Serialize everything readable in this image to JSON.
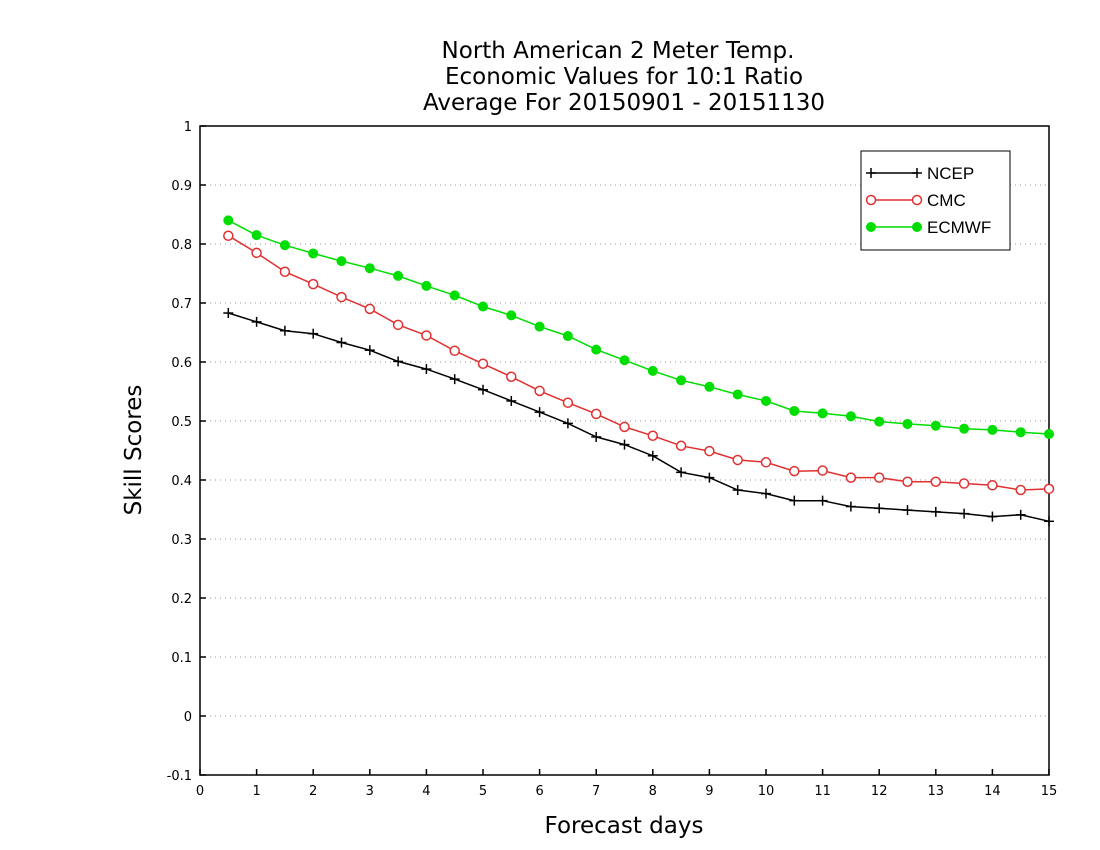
{
  "chart_data": {
    "type": "line",
    "title": [
      "North American 2 Meter Temp.",
      "Economic Values for 10:1 Ratio",
      "Average For 20150901 - 20151130"
    ],
    "xlabel": "Forecast days",
    "ylabel": "Skill Scores",
    "xlim": [
      0,
      15
    ],
    "ylim": [
      -0.1,
      1
    ],
    "xticks": [
      0,
      1,
      2,
      3,
      4,
      5,
      6,
      7,
      8,
      9,
      10,
      11,
      12,
      13,
      14,
      15
    ],
    "yticks": [
      -0.1,
      0,
      0.1,
      0.2,
      0.3,
      0.4,
      0.5,
      0.6,
      0.7,
      0.8,
      0.9,
      1
    ],
    "ytick_labels": [
      "-0.1",
      "0",
      "0.1",
      "0.2",
      "0.3",
      "0.4",
      "0.5",
      "0.6",
      "0.7",
      "0.8",
      "0.9",
      "1"
    ],
    "grid": "horizontal dotted",
    "legend_position": "top-right",
    "x": [
      0.5,
      1.0,
      1.5,
      2.0,
      2.5,
      3.0,
      3.5,
      4.0,
      4.5,
      5.0,
      5.5,
      6.0,
      6.5,
      7.0,
      7.5,
      8.0,
      8.5,
      9.0,
      9.5,
      10.0,
      10.5,
      11.0,
      11.5,
      12.0,
      12.5,
      13.0,
      13.5,
      14.0,
      14.5,
      15.0
    ],
    "series": [
      {
        "name": "NCEP",
        "color": "#000000",
        "marker": "plus",
        "values": [
          0.683,
          0.668,
          0.653,
          0.648,
          0.633,
          0.62,
          0.601,
          0.588,
          0.571,
          0.553,
          0.534,
          0.515,
          0.496,
          0.473,
          0.46,
          0.441,
          0.413,
          0.404,
          0.383,
          0.377,
          0.365,
          0.365,
          0.355,
          0.352,
          0.349,
          0.346,
          0.343,
          0.338,
          0.341,
          0.33
        ]
      },
      {
        "name": "CMC",
        "color": "#e03030",
        "marker": "open-circle",
        "values": [
          0.814,
          0.785,
          0.753,
          0.732,
          0.71,
          0.69,
          0.663,
          0.645,
          0.619,
          0.597,
          0.575,
          0.551,
          0.531,
          0.512,
          0.49,
          0.475,
          0.458,
          0.449,
          0.434,
          0.43,
          0.415,
          0.416,
          0.404,
          0.404,
          0.397,
          0.397,
          0.394,
          0.391,
          0.383,
          0.385
        ]
      },
      {
        "name": "ECMWF",
        "color": "#00dd00",
        "marker": "filled-circle",
        "values": [
          0.84,
          0.815,
          0.798,
          0.784,
          0.771,
          0.759,
          0.746,
          0.729,
          0.713,
          0.694,
          0.679,
          0.66,
          0.644,
          0.621,
          0.603,
          0.585,
          0.569,
          0.558,
          0.545,
          0.534,
          0.517,
          0.513,
          0.508,
          0.499,
          0.495,
          0.492,
          0.487,
          0.485,
          0.481,
          0.478
        ]
      }
    ]
  }
}
